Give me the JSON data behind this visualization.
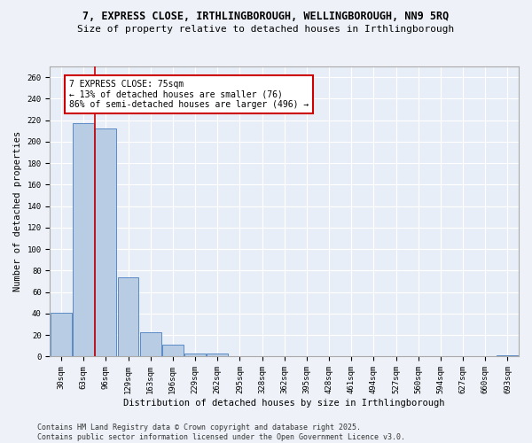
{
  "title_line1": "7, EXPRESS CLOSE, IRTHLINGBOROUGH, WELLINGBOROUGH, NN9 5RQ",
  "title_line2": "Size of property relative to detached houses in Irthlingborough",
  "xlabel": "Distribution of detached houses by size in Irthlingborough",
  "ylabel": "Number of detached properties",
  "categories": [
    "30sqm",
    "63sqm",
    "96sqm",
    "129sqm",
    "163sqm",
    "196sqm",
    "229sqm",
    "262sqm",
    "295sqm",
    "328sqm",
    "362sqm",
    "395sqm",
    "428sqm",
    "461sqm",
    "494sqm",
    "527sqm",
    "560sqm",
    "594sqm",
    "627sqm",
    "660sqm",
    "693sqm"
  ],
  "values": [
    41,
    217,
    212,
    74,
    23,
    11,
    3,
    3,
    0,
    0,
    0,
    0,
    0,
    0,
    0,
    0,
    0,
    0,
    0,
    0,
    1
  ],
  "bar_color": "#b8cce4",
  "bar_edge_color": "#5a8ac6",
  "property_line_x": 1.5,
  "annotation_text": "7 EXPRESS CLOSE: 75sqm\n← 13% of detached houses are smaller (76)\n86% of semi-detached houses are larger (496) →",
  "annotation_box_color": "#ffffff",
  "annotation_box_edge": "#cc0000",
  "red_line_color": "#cc0000",
  "ylim": [
    0,
    270
  ],
  "yticks": [
    0,
    20,
    40,
    60,
    80,
    100,
    120,
    140,
    160,
    180,
    200,
    220,
    240,
    260
  ],
  "background_color": "#e8eef7",
  "fig_background_color": "#eef2f8",
  "grid_color": "#ffffff",
  "footer_line1": "Contains HM Land Registry data © Crown copyright and database right 2025.",
  "footer_line2": "Contains public sector information licensed under the Open Government Licence v3.0.",
  "title_fontsize": 8.5,
  "subtitle_fontsize": 8,
  "axis_label_fontsize": 7.5,
  "tick_fontsize": 6.5,
  "annotation_fontsize": 7,
  "footer_fontsize": 6
}
